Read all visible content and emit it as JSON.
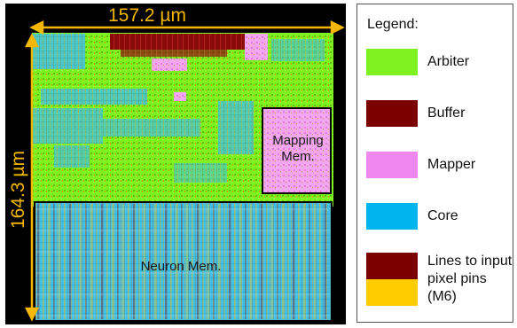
{
  "figure": {
    "width_label": "157.2 µm",
    "height_label": "164.3 µm"
  },
  "regions": {
    "mapping_mem_label": "Mapping Mem.",
    "neuron_mem_label": "Neuron Mem."
  },
  "legend": {
    "title": "Legend:",
    "items": [
      {
        "label": "Arbiter",
        "color": "#7ef21f"
      },
      {
        "label": "Buffer",
        "color": "#7a0000"
      },
      {
        "label": "Mapper",
        "color": "#ee88ee"
      },
      {
        "label": "Core",
        "color": "#00b4ee"
      },
      {
        "label": "Lines to input pixel pins (M6)",
        "colors": [
          "#7a0000",
          "#ffcc00"
        ]
      }
    ]
  },
  "colors": {
    "dimension_arrow": "#f5b800",
    "region_outline": "#000000",
    "background": "#000000"
  }
}
